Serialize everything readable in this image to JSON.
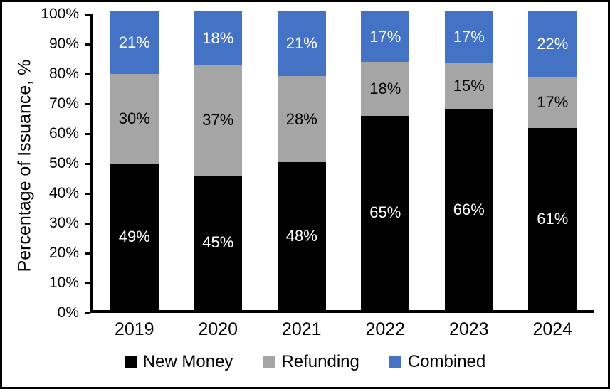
{
  "chart_data": {
    "type": "bar",
    "stacked": true,
    "title": "",
    "xlabel": "",
    "ylabel": "Percentage of Issuance, %",
    "ylim": [
      0,
      100
    ],
    "y_tick_labels": [
      "0%",
      "10%",
      "20%",
      "30%",
      "40%",
      "50%",
      "60%",
      "70%",
      "80%",
      "90%",
      "100%"
    ],
    "grid": false,
    "legend_position": "bottom",
    "label_suffix": "%",
    "categories": [
      "2019",
      "2020",
      "2021",
      "2022",
      "2023",
      "2024"
    ],
    "series": [
      {
        "name": "New Money",
        "color": "#000000",
        "label_color": "#FFFFFF",
        "values": [
          49,
          45,
          48,
          65,
          66,
          61
        ]
      },
      {
        "name": "Refunding",
        "color": "#A5A5A5",
        "label_color": "#000000",
        "values": [
          30,
          37,
          28,
          18,
          15,
          17
        ]
      },
      {
        "name": "Combined",
        "color": "#4472C4",
        "label_color": "#FFFFFF",
        "values": [
          21,
          18,
          21,
          17,
          17,
          22
        ]
      }
    ]
  }
}
